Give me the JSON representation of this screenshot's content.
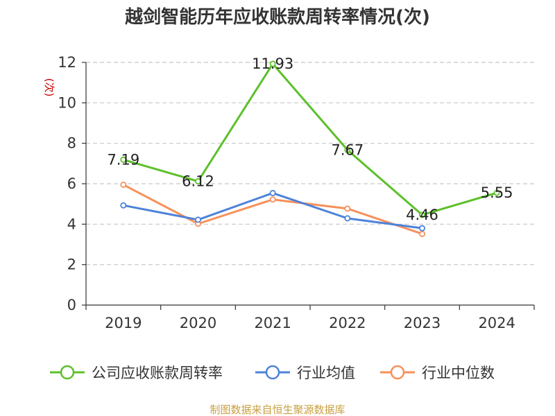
{
  "chart_data": {
    "type": "line",
    "title": "越剑智能历年应收账款周转率情况(次)",
    "ylabel": "(次)",
    "xlabel": "",
    "categories": [
      "2019",
      "2020",
      "2021",
      "2022",
      "2023",
      "2024"
    ],
    "ylim": [
      0,
      12
    ],
    "yticks": [
      0,
      2,
      4,
      6,
      8,
      10,
      12
    ],
    "grid": true,
    "legend_position": "bottom",
    "series": [
      {
        "name": "公司应收账款周转率",
        "color": "#5cc02a",
        "values": [
          7.19,
          6.12,
          11.93,
          7.67,
          4.46,
          5.55
        ],
        "labels": [
          "7.19",
          "6.12",
          "11.93",
          "7.67",
          "4.46",
          "5.55"
        ]
      },
      {
        "name": "行业均值",
        "color": "#4d82d9",
        "values": [
          4.93,
          4.22,
          5.54,
          4.29,
          3.8,
          null
        ],
        "labels": []
      },
      {
        "name": "行业中位数",
        "color": "#f7905a",
        "values": [
          5.95,
          4.02,
          5.22,
          4.77,
          3.52,
          null
        ],
        "labels": []
      }
    ],
    "source": "制图数据来自恒生聚源数据库"
  }
}
